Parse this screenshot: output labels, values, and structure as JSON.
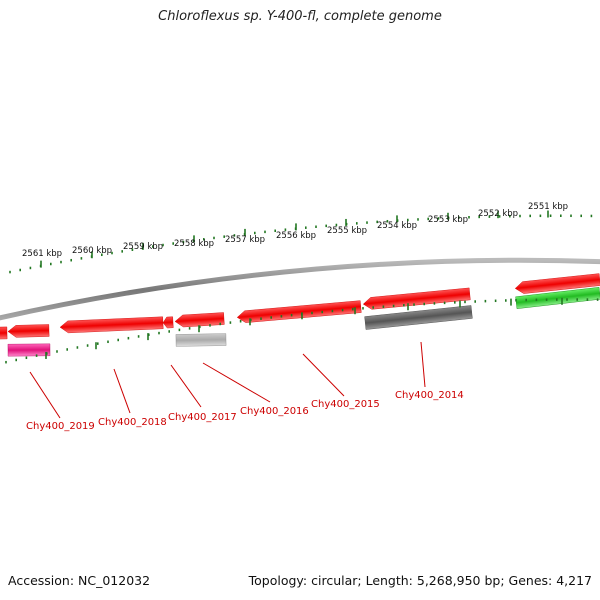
{
  "header": {
    "title": "Chloroflexus sp. Y-400-fl, complete genome"
  },
  "footer": {
    "accession": "Accession: NC_012032",
    "summary": "Topology: circular; Length: 5,268,950 bp; Genes: 4,217"
  },
  "ruler": {
    "unit": "kbp",
    "ticks": [
      {
        "kb": 2561,
        "label": "2561 kbp"
      },
      {
        "kb": 2560,
        "label": "2560 kbp"
      },
      {
        "kb": 2559,
        "label": "2559 kbp"
      },
      {
        "kb": 2558,
        "label": "2558 kbp"
      },
      {
        "kb": 2557,
        "label": "2557 kbp"
      },
      {
        "kb": 2556,
        "label": "2556 kbp"
      },
      {
        "kb": 2555,
        "label": "2555 kbp"
      },
      {
        "kb": 2554,
        "label": "2554 kbp"
      },
      {
        "kb": 2553,
        "label": "2553 kbp"
      },
      {
        "kb": 2552,
        "label": "2552 kbp"
      },
      {
        "kb": 2551,
        "label": "2551 kbp"
      }
    ]
  },
  "genes": [
    {
      "id": "Chy400_2019",
      "label": "Chy400_2019"
    },
    {
      "id": "Chy400_2018",
      "label": "Chy400_2018"
    },
    {
      "id": "Chy400_2017",
      "label": "Chy400_2017"
    },
    {
      "id": "Chy400_2016",
      "label": "Chy400_2016"
    },
    {
      "id": "Chy400_2015",
      "label": "Chy400_2015"
    },
    {
      "id": "Chy400_2014",
      "label": "Chy400_2014"
    }
  ],
  "colors": {
    "cds": "#ee1111",
    "trna_pink": "#e0127a",
    "dark_feature": "#555555",
    "light_feature": "#aaaaaa",
    "green_feature": "#22bb22",
    "backbone": "#777777",
    "tick_green": "#227722",
    "label_red": "#cc0000"
  }
}
